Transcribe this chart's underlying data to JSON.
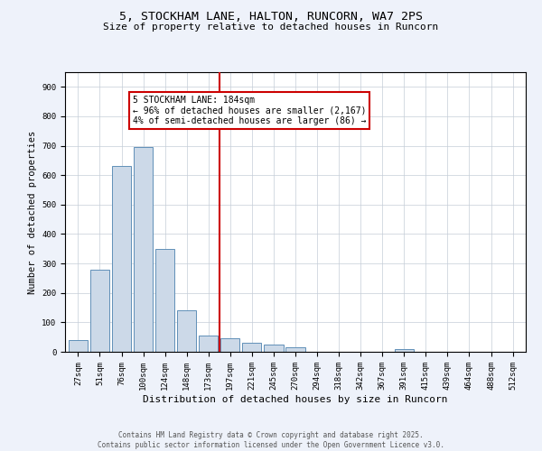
{
  "title": "5, STOCKHAM LANE, HALTON, RUNCORN, WA7 2PS",
  "subtitle": "Size of property relative to detached houses in Runcorn",
  "xlabel": "Distribution of detached houses by size in Runcorn",
  "ylabel": "Number of detached properties",
  "bar_color": "#ccd9e8",
  "bar_edge_color": "#6090b8",
  "categories": [
    "27sqm",
    "51sqm",
    "76sqm",
    "100sqm",
    "124sqm",
    "148sqm",
    "173sqm",
    "197sqm",
    "221sqm",
    "245sqm",
    "270sqm",
    "294sqm",
    "318sqm",
    "342sqm",
    "367sqm",
    "391sqm",
    "415sqm",
    "439sqm",
    "464sqm",
    "488sqm",
    "512sqm"
  ],
  "values": [
    40,
    280,
    630,
    695,
    350,
    140,
    55,
    45,
    30,
    25,
    15,
    0,
    0,
    0,
    0,
    10,
    0,
    0,
    0,
    0,
    0
  ],
  "ylim": [
    0,
    950
  ],
  "yticks": [
    0,
    100,
    200,
    300,
    400,
    500,
    600,
    700,
    800,
    900
  ],
  "vline_x_index": 6.5,
  "vline_color": "#cc0000",
  "annotation_text": "5 STOCKHAM LANE: 184sqm\n← 96% of detached houses are smaller (2,167)\n4% of semi-detached houses are larger (86) →",
  "annotation_box_facecolor": "#ffffff",
  "annotation_box_edgecolor": "#cc0000",
  "footer": "Contains HM Land Registry data © Crown copyright and database right 2025.\nContains public sector information licensed under the Open Government Licence v3.0.",
  "fig_facecolor": "#eef2fa",
  "axes_facecolor": "#ffffff",
  "grid_color": "#c5cdd8",
  "title_fontsize": 9.5,
  "subtitle_fontsize": 8,
  "xlabel_fontsize": 8,
  "ylabel_fontsize": 7.5,
  "tick_fontsize": 6.5,
  "annotation_fontsize": 7,
  "footer_fontsize": 5.5
}
